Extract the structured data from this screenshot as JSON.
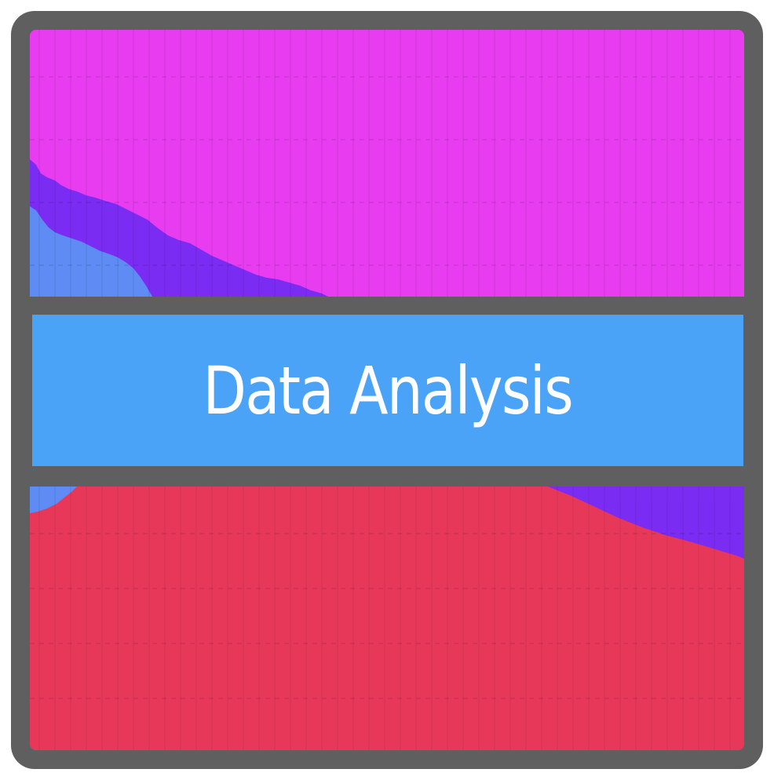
{
  "banner": {
    "title": "Data Analysis"
  },
  "colors": {
    "frame": "#5f5f5f",
    "magenta": "#e83cf0",
    "violet": "#7b2cf2",
    "light_blue": "#5e8cf4",
    "red": "#e8385a",
    "banner_blue": "#4aa3f6",
    "text": "#ffffff"
  },
  "icon": {
    "name": "data-analysis-stacked-area-icon"
  }
}
